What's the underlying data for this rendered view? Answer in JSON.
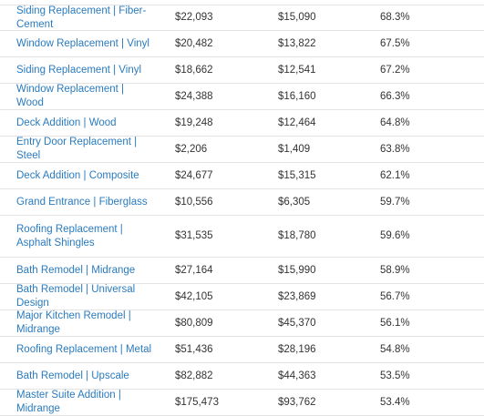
{
  "table": {
    "rows": [
      {
        "project": "Siding Replacement | Fiber-Cement",
        "cost": "$22,093",
        "resale": "$15,090",
        "recouped": "68.3%"
      },
      {
        "project": "Window Replacement | Vinyl",
        "cost": "$20,482",
        "resale": "$13,822",
        "recouped": "67.5%"
      },
      {
        "project": "Siding Replacement | Vinyl",
        "cost": "$18,662",
        "resale": "$12,541",
        "recouped": "67.2%"
      },
      {
        "project": "Window Replacement | Wood",
        "cost": "$24,388",
        "resale": "$16,160",
        "recouped": "66.3%"
      },
      {
        "project": "Deck Addition | Wood",
        "cost": "$19,248",
        "resale": "$12,464",
        "recouped": "64.8%"
      },
      {
        "project": "Entry Door Replacement | Steel",
        "cost": "$2,206",
        "resale": "$1,409",
        "recouped": "63.8%"
      },
      {
        "project": "Deck Addition | Composite",
        "cost": "$24,677",
        "resale": "$15,315",
        "recouped": "62.1%"
      },
      {
        "project": "Grand Entrance | Fiberglass",
        "cost": "$10,556",
        "resale": "$6,305",
        "recouped": "59.7%"
      },
      {
        "project": "Roofing Replacement | Asphalt Shingles",
        "cost": "$31,535",
        "resale": "$18,780",
        "recouped": "59.6%"
      },
      {
        "project": "Bath Remodel | Midrange",
        "cost": "$27,164",
        "resale": "$15,990",
        "recouped": "58.9%"
      },
      {
        "project": "Bath Remodel | Universal Design",
        "cost": "$42,105",
        "resale": "$23,869",
        "recouped": "56.7%"
      },
      {
        "project": "Major Kitchen Remodel | Midrange",
        "cost": "$80,809",
        "resale": "$45,370",
        "recouped": "56.1%"
      },
      {
        "project": "Roofing Replacement | Metal",
        "cost": "$51,436",
        "resale": "$28,196",
        "recouped": "54.8%"
      },
      {
        "project": "Bath Remodel | Upscale",
        "cost": "$82,882",
        "resale": "$44,363",
        "recouped": "53.5%"
      },
      {
        "project": "Master Suite Addition | Midrange",
        "cost": "$175,473",
        "resale": "$93,762",
        "recouped": "53.4%"
      }
    ]
  }
}
